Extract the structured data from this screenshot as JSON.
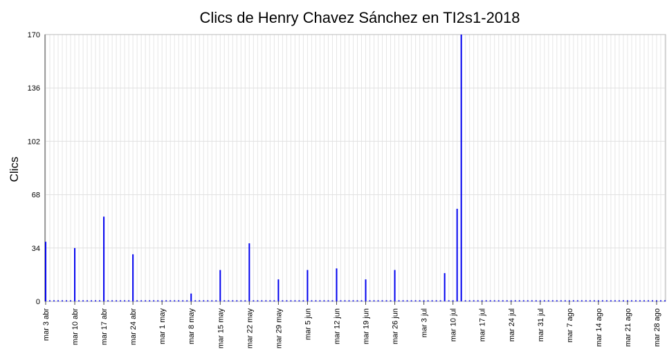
{
  "chart_data": {
    "type": "bar",
    "title": "Clics de Henry Chavez Sánchez en TI2s1-2018",
    "y_label": "Clics",
    "color": "#0000ee",
    "grid": true,
    "ylim": [
      0,
      170
    ],
    "yticks": [
      0,
      34,
      68,
      102,
      136,
      170
    ],
    "categories": [
      "mar 3 abr",
      null,
      null,
      null,
      null,
      null,
      null,
      "mar 10 abr",
      null,
      null,
      null,
      null,
      null,
      null,
      "mar 17 abr",
      null,
      null,
      null,
      null,
      null,
      null,
      "mar 24 abr",
      null,
      null,
      null,
      null,
      null,
      null,
      "mar 1 may",
      null,
      null,
      null,
      null,
      null,
      null,
      "mar 8 may",
      null,
      null,
      null,
      null,
      null,
      null,
      "mar 15 may",
      null,
      null,
      null,
      null,
      null,
      null,
      "mar 22 may",
      null,
      null,
      null,
      null,
      null,
      null,
      "mar 29 may",
      null,
      null,
      null,
      null,
      null,
      null,
      "mar 5 jun",
      null,
      null,
      null,
      null,
      null,
      null,
      "mar 12 jun",
      null,
      null,
      null,
      null,
      null,
      null,
      "mar 19 jun",
      null,
      null,
      null,
      null,
      null,
      null,
      "mar 26 jun",
      null,
      null,
      null,
      null,
      null,
      null,
      "mar 3 jul",
      null,
      null,
      null,
      null,
      null,
      null,
      "mar 10 jul",
      null,
      null,
      null,
      null,
      null,
      null,
      "mar 17 jul",
      null,
      null,
      null,
      null,
      null,
      null,
      "mar 24 jul",
      null,
      null,
      null,
      null,
      null,
      null,
      "mar 31 jul",
      null,
      null,
      null,
      null,
      null,
      null,
      "mar 7 ago",
      null,
      null,
      null,
      null,
      null,
      null,
      "mar 14 ago",
      null,
      null,
      null,
      null,
      null,
      null,
      "mar 21 ago",
      null,
      null,
      null,
      null,
      null,
      null,
      "mar 28 ago",
      null,
      null
    ],
    "values": [
      38,
      0,
      0,
      0,
      0,
      0,
      0,
      34,
      0,
      0,
      0,
      0,
      0,
      0,
      54,
      0,
      0,
      0,
      0,
      0,
      0,
      30,
      0,
      0,
      0,
      0,
      0,
      0,
      0,
      0,
      0,
      0,
      0,
      0,
      0,
      5,
      0,
      0,
      0,
      0,
      0,
      0,
      20,
      0,
      0,
      0,
      0,
      0,
      0,
      37,
      0,
      0,
      0,
      0,
      0,
      0,
      14,
      0,
      0,
      0,
      0,
      0,
      0,
      20,
      0,
      0,
      0,
      0,
      0,
      0,
      21,
      0,
      0,
      0,
      0,
      0,
      0,
      14,
      0,
      0,
      0,
      0,
      0,
      0,
      20,
      0,
      0,
      0,
      0,
      0,
      0,
      0,
      0,
      0,
      0,
      0,
      18,
      0,
      0,
      59,
      170,
      0,
      0,
      0,
      0,
      0,
      0,
      0,
      0,
      0,
      0,
      0,
      0,
      0,
      0,
      0,
      0,
      0,
      0,
      0,
      0,
      0,
      0,
      0,
      0,
      0,
      0,
      0,
      0,
      0,
      0,
      0,
      0,
      0,
      0,
      0,
      0,
      0,
      0,
      0,
      0,
      0,
      0,
      0,
      0,
      0,
      0,
      0,
      0,
      0
    ]
  }
}
